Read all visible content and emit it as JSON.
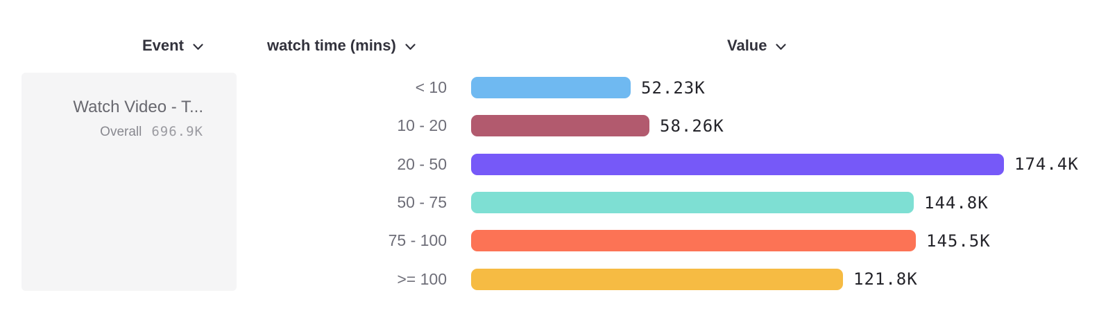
{
  "header": {
    "event_label": "Event",
    "group_by_label": "watch time (mins)",
    "value_label": "Value"
  },
  "event_panel": {
    "title": "Watch Video - T...",
    "overall_label": "Overall",
    "overall_value": "696.9K"
  },
  "colors": {
    "header_text": "#32323c",
    "category_text": "#6e6e78",
    "value_text": "#24242a",
    "panel_bg": "#f5f5f6"
  },
  "chart_data": {
    "type": "bar",
    "orientation": "horizontal",
    "title": "",
    "xlabel": "Value",
    "ylabel": "watch time (mins)",
    "series_name": "Watch Video - T...",
    "categories": [
      "< 10",
      "10 - 20",
      "20 - 50",
      "50 - 75",
      "75 - 100",
      ">= 100"
    ],
    "values": [
      52230,
      58260,
      174400,
      144800,
      145500,
      121800
    ],
    "value_labels": [
      "52.23K",
      "58.26K",
      "174.4K",
      "144.8K",
      "145.5K",
      "121.8K"
    ],
    "bar_colors": [
      "#6fb9f1",
      "#b25a6e",
      "#7659f8",
      "#7edfd3",
      "#fc7355",
      "#f6bb43"
    ],
    "max_value": 174400,
    "overall_total": "696.9K",
    "grid": false,
    "legend": false
  }
}
